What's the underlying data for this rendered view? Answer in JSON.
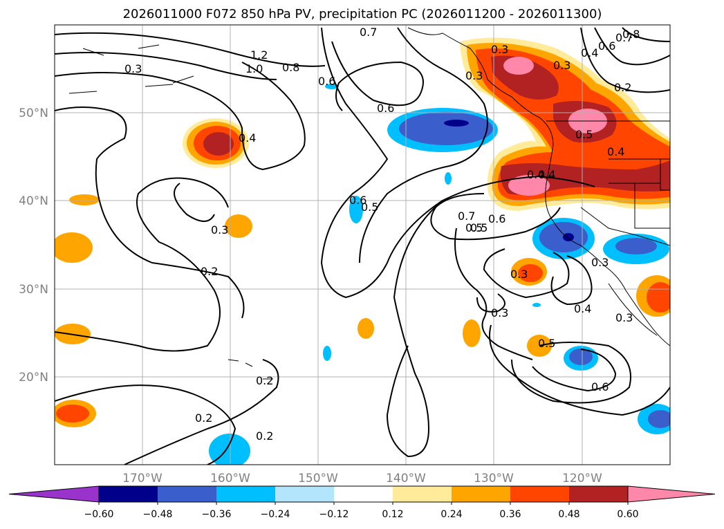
{
  "chart_data": {
    "type": "map-contour",
    "title": "2026011000 F072 850 hPa PV, precipitation PC (2026011200 - 2026011300)",
    "map": {
      "lon_ticks": [
        "170°W",
        "160°W",
        "150°W",
        "140°W",
        "130°W",
        "120°W"
      ],
      "lat_ticks": [
        "20°N",
        "30°N",
        "40°N",
        "50°N"
      ],
      "grid": true
    },
    "colorbar": {
      "orientation": "horizontal",
      "extend": "both",
      "tick_labels": [
        "−0.60",
        "−0.48",
        "−0.36",
        "−0.24",
        "−0.12",
        "0.12",
        "0.24",
        "0.36",
        "0.48",
        "0.60"
      ],
      "colors": [
        "#9933cc",
        "#00008b",
        "#3a5fcd",
        "#00bfff",
        "#b3e5fc",
        "#ffffff",
        "#ffeb99",
        "#ffa500",
        "#ff4500",
        "#b22222",
        "#ff88aa"
      ]
    },
    "pv_contour_labels": [
      "0.2",
      "0.2",
      "0.2",
      "0.2",
      "0.3",
      "0.3",
      "0.3",
      "0.3",
      "0.3",
      "0.4",
      "0.4",
      "0.4",
      "0.5",
      "0.5",
      "0.5",
      "0.5",
      "0.6",
      "0.6",
      "0.6",
      "0.6",
      "0.7",
      "0.7",
      "0.8",
      "1.0",
      "1.2",
      "0.8",
      "0.6",
      "0.4",
      "0.3",
      "0.2",
      "0.4",
      "0.7",
      "0.6",
      "0.3",
      "0.3",
      "0.4",
      "0.5",
      "0.3"
    ]
  }
}
